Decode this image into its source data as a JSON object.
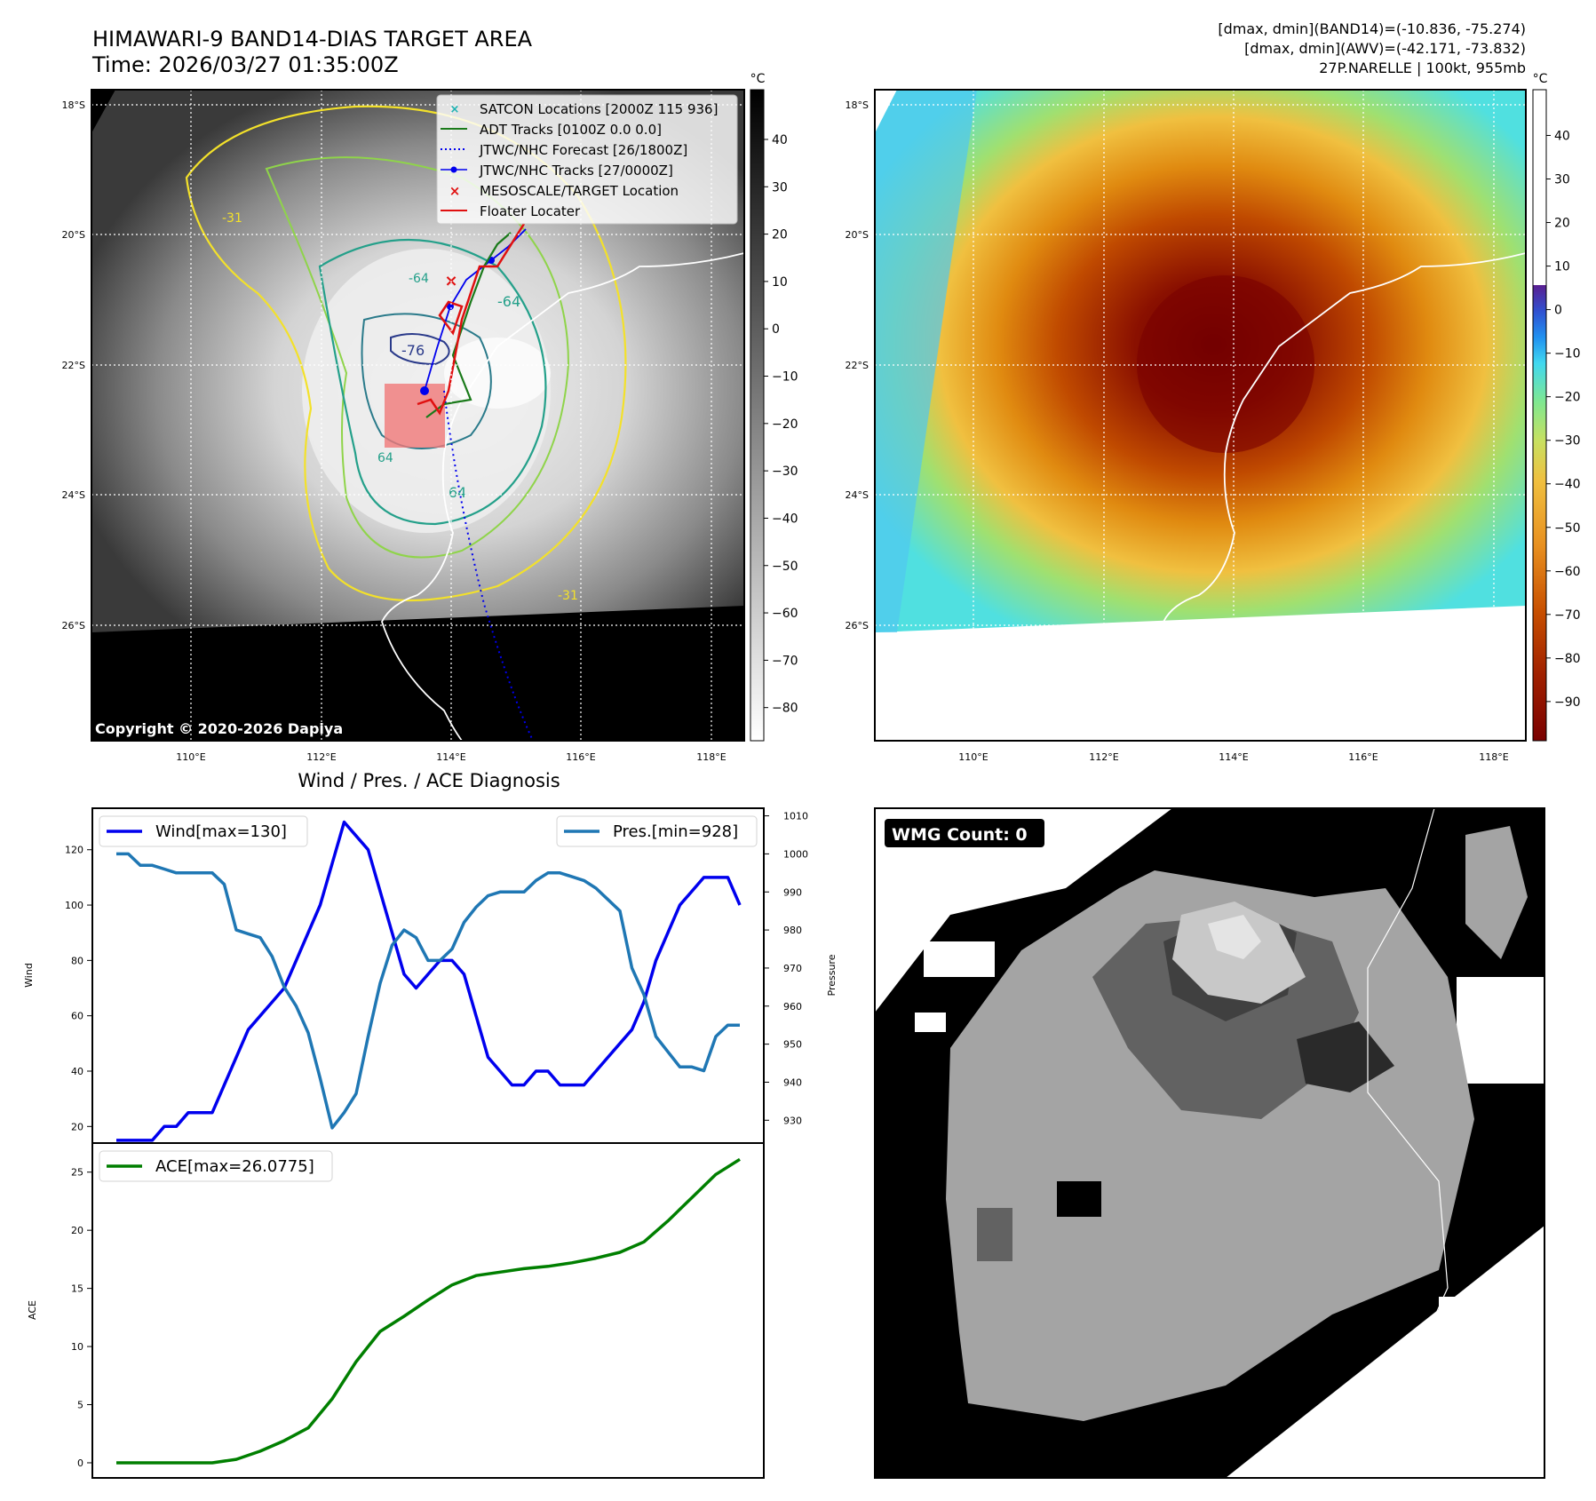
{
  "header": {
    "title_line1": "HIMAWARI-9 BAND14-DIAS TARGET AREA",
    "title_line2": "Time: 2026/03/27 01:35:00Z",
    "dmax_band14": "[dmax, dmin](BAND14)=(-10.836, -75.274)",
    "dmax_awv": "[dmax, dmin](AWV)=(-42.171, -73.832)",
    "storm_info": "27P.NARELLE | 100kt, 955mb"
  },
  "maps": {
    "lat_labels": [
      "18°S",
      "20°S",
      "22°S",
      "24°S",
      "26°S"
    ],
    "lon_labels": [
      "110°E",
      "112°E",
      "114°E",
      "116°E",
      "118°E"
    ],
    "copyright": "Copyright © 2020-2026 Dapiya",
    "contour_labels": [
      "-31",
      "-64",
      "-76",
      "64",
      "-64",
      "64",
      "-31"
    ],
    "colorbar_unit": "°C",
    "band14_ticks": [
      "40",
      "30",
      "20",
      "10",
      "0",
      "−10",
      "−20",
      "−30",
      "−40",
      "−50",
      "−60",
      "−70",
      "−80"
    ],
    "awv_ticks": [
      "40",
      "30",
      "20",
      "10",
      "0",
      "−10",
      "−20",
      "−30",
      "−40",
      "−50",
      "−60",
      "−70",
      "−80",
      "−90"
    ],
    "legend": [
      {
        "label": "SATCON Locations [2000Z 115 936]",
        "color": "#1ab2b2",
        "marker": "x"
      },
      {
        "label": "ADT Tracks [0100Z 0.0 0.0]",
        "color": "#1a7a1a",
        "marker": "line"
      },
      {
        "label": "JTWC/NHC Forecast [26/1800Z]",
        "color": "#0000ee",
        "marker": "dotted"
      },
      {
        "label": "JTWC/NHC Tracks [27/0000Z]",
        "color": "#0000ee",
        "marker": "dot-line"
      },
      {
        "label": "MESOSCALE/TARGET Location",
        "color": "#e01010",
        "marker": "x"
      },
      {
        "label": "Floater Locater",
        "color": "#e01010",
        "marker": "line"
      }
    ]
  },
  "chart_data": [
    {
      "type": "line",
      "title": "Wind / Pres. / ACE Diagnosis",
      "ylabel": "Wind",
      "ylabel_right": "Pressure",
      "ylim": [
        14,
        135
      ],
      "ylim_right": [
        924,
        1012
      ],
      "yticks": [
        20,
        40,
        60,
        80,
        100,
        120
      ],
      "yticks_right": [
        930,
        940,
        950,
        960,
        970,
        980,
        990,
        1000,
        1010
      ],
      "x": [
        0,
        1,
        2,
        3,
        4,
        5,
        6,
        7,
        8,
        9,
        10,
        11,
        12,
        13,
        14,
        15,
        16,
        17,
        18,
        19,
        20,
        21,
        22,
        23,
        24,
        25,
        26,
        27,
        28,
        29,
        30,
        31,
        32,
        33,
        34,
        35,
        36,
        37,
        38,
        39,
        40,
        41,
        42,
        43,
        44,
        45,
        46,
        47,
        48,
        49,
        50,
        51,
        52
      ],
      "series": [
        {
          "name": "Wind",
          "legend": "Wind[max=130]",
          "color": "#0000ee",
          "axis": "left",
          "values": [
            15,
            15,
            15,
            15,
            20,
            20,
            25,
            25,
            25,
            35,
            45,
            55,
            60,
            65,
            70,
            80,
            90,
            100,
            115,
            130,
            125,
            120,
            105,
            90,
            75,
            70,
            75,
            80,
            80,
            75,
            60,
            45,
            40,
            35,
            35,
            40,
            40,
            35,
            35,
            35,
            40,
            45,
            50,
            55,
            65,
            80,
            90,
            100,
            105,
            110,
            110,
            110,
            100
          ]
        },
        {
          "name": "Pres.",
          "legend": "Pres.[min=928]",
          "color": "#1f77b4",
          "axis": "right",
          "values": [
            1000,
            1000,
            997,
            997,
            996,
            995,
            995,
            995,
            995,
            992,
            980,
            979,
            978,
            973,
            965,
            960,
            953,
            941,
            928,
            932,
            937,
            952,
            966,
            976,
            980,
            978,
            972,
            972,
            975,
            982,
            986,
            989,
            990,
            990,
            990,
            993,
            995,
            995,
            994,
            993,
            991,
            988,
            985,
            970,
            963,
            952,
            948,
            944,
            944,
            943,
            952,
            955,
            955
          ]
        }
      ]
    },
    {
      "type": "line",
      "ylabel": "ACE",
      "ylim": [
        -1.3,
        27.5
      ],
      "yticks": [
        0,
        5,
        10,
        15,
        20,
        25
      ],
      "x": [
        0,
        2,
        4,
        6,
        8,
        10,
        12,
        14,
        16,
        18,
        20,
        22,
        24,
        26,
        28,
        30,
        32,
        34,
        36,
        38,
        40,
        42,
        44,
        46,
        48,
        50,
        52
      ],
      "series": [
        {
          "name": "ACE",
          "legend": "ACE[max=26.0775]",
          "color": "#007f00",
          "values": [
            0,
            0,
            0,
            0,
            0,
            0.3,
            1.0,
            1.9,
            3.0,
            5.5,
            8.7,
            11.3,
            12.6,
            14.0,
            15.3,
            16.1,
            16.4,
            16.7,
            16.9,
            17.2,
            17.6,
            18.1,
            19.0,
            20.8,
            22.8,
            24.8,
            26.1
          ]
        }
      ]
    }
  ],
  "wmg": {
    "label": "WMG Count: 0"
  }
}
